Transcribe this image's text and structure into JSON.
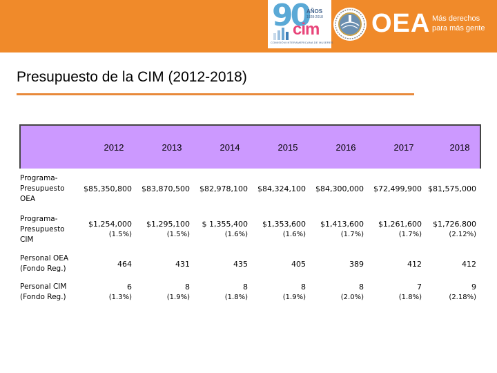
{
  "header": {
    "cim_logo": {
      "anniversary_number": "90",
      "anios_label": "AÑOS",
      "years_range": "1928-2018",
      "acronym": "cim",
      "tagline": "COMISIÓN INTERAMERICANA DE MUJERES"
    },
    "oea_logo": {
      "acronym": "OEA",
      "slogan_line1": "Más derechos",
      "slogan_line2": "para más gente"
    },
    "colors": {
      "banner": "#f08a2a",
      "accent_rule": "#e8893a",
      "table_header": "#cc99ff"
    }
  },
  "slide": {
    "title": "Presupuesto de la CIM (2012-2018)"
  },
  "table": {
    "years": [
      "2012",
      "2013",
      "2014",
      "2015",
      "2016",
      "2017",
      "2018"
    ],
    "rows": [
      {
        "label_lines": [
          "Programa-",
          "Presupuesto",
          "OEA"
        ],
        "cells": [
          [
            "$85,350,800"
          ],
          [
            "$83,870,500"
          ],
          [
            "$82,978,100"
          ],
          [
            "$84,324,100"
          ],
          [
            "$84,300,000"
          ],
          [
            "$72,499,900"
          ],
          [
            "$81,575,000"
          ]
        ]
      },
      {
        "label_lines": [
          "Programa-",
          "Presupuesto",
          "CIM"
        ],
        "cells": [
          [
            "$1,254,000",
            "(1.5%)"
          ],
          [
            "$1,295,100",
            "(1.5%)"
          ],
          [
            "$ 1,355,400",
            "(1.6%)"
          ],
          [
            "$1,353,600",
            "(1.6%)"
          ],
          [
            "$1,413,600",
            "(1.7%)"
          ],
          [
            "$1,261,600",
            "(1.7%)"
          ],
          [
            "$1,726.800",
            "(2.12%)"
          ]
        ]
      },
      {
        "label_lines": [
          "Personal OEA",
          "(Fondo Reg.)"
        ],
        "cells": [
          [
            "464"
          ],
          [
            "431"
          ],
          [
            "435"
          ],
          [
            "405"
          ],
          [
            "389"
          ],
          [
            "412"
          ],
          [
            "412"
          ]
        ]
      },
      {
        "label_lines": [
          "Personal CIM",
          "(Fondo Reg.)"
        ],
        "cells": [
          [
            "6",
            "(1.3%)"
          ],
          [
            "8",
            "(1.9%)"
          ],
          [
            "8",
            "(1.8%)"
          ],
          [
            "8",
            "(1.9%)"
          ],
          [
            "8",
            "(2.0%)"
          ],
          [
            "7",
            "(1.8%)"
          ],
          [
            "9",
            "(2.18%)"
          ]
        ]
      }
    ]
  }
}
